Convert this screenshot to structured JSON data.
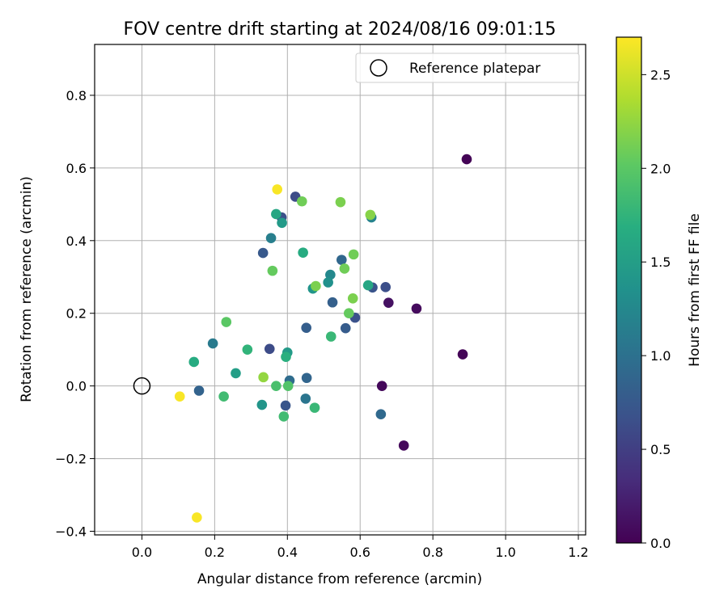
{
  "chart_data": {
    "type": "scatter",
    "title": "FOV centre drift starting at 2024/08/16 09:01:15",
    "xlabel": "Angular distance from reference (arcmin)",
    "ylabel": "Rotation from reference (arcmin)",
    "xlim": [
      -0.13,
      1.22
    ],
    "ylim": [
      -0.41,
      0.94
    ],
    "xticks": [
      0.0,
      0.2,
      0.4,
      0.6,
      0.8,
      1.0,
      1.2
    ],
    "yticks": [
      -0.4,
      -0.2,
      0.0,
      0.2,
      0.4,
      0.6,
      0.8
    ],
    "xtick_labels": [
      "0.0",
      "0.2",
      "0.4",
      "0.6",
      "0.8",
      "1.0",
      "1.2"
    ],
    "ytick_labels": [
      "−0.4",
      "−0.2",
      "0.0",
      "0.2",
      "0.4",
      "0.6",
      "0.8"
    ],
    "grid": true,
    "legend": {
      "position": "top-right",
      "entries": [
        "Reference platepar"
      ]
    },
    "reference_point": {
      "x": 0.0,
      "y": 0.0,
      "label": "Reference platepar"
    },
    "colorbar": {
      "label": "Hours from first FF file",
      "colormap": "viridis",
      "range": [
        0.0,
        2.7
      ],
      "ticks": [
        0.0,
        0.5,
        1.0,
        1.5,
        2.0,
        2.5
      ],
      "tick_labels": [
        "0.0",
        "0.5",
        "1.0",
        "1.5",
        "2.0",
        "2.5"
      ]
    },
    "points": [
      {
        "x": 0.893,
        "y": 0.624,
        "c": 0.02
      },
      {
        "x": 0.882,
        "y": 0.087,
        "c": 0.03
      },
      {
        "x": 0.755,
        "y": 0.213,
        "c": 0.08
      },
      {
        "x": 0.678,
        "y": 0.229,
        "c": 0.12
      },
      {
        "x": 0.66,
        "y": 0.0,
        "c": 0.05
      },
      {
        "x": 0.72,
        "y": -0.164,
        "c": 0.06
      },
      {
        "x": 0.67,
        "y": 0.272,
        "c": 0.65
      },
      {
        "x": 0.634,
        "y": 0.271,
        "c": 0.7
      },
      {
        "x": 0.586,
        "y": 0.188,
        "c": 0.68
      },
      {
        "x": 0.56,
        "y": 0.159,
        "c": 0.78
      },
      {
        "x": 0.657,
        "y": -0.078,
        "c": 0.92
      },
      {
        "x": 0.422,
        "y": 0.521,
        "c": 0.62
      },
      {
        "x": 0.384,
        "y": 0.464,
        "c": 0.66
      },
      {
        "x": 0.524,
        "y": 0.23,
        "c": 0.82
      },
      {
        "x": 0.452,
        "y": 0.16,
        "c": 0.8
      },
      {
        "x": 0.549,
        "y": 0.347,
        "c": 0.9
      },
      {
        "x": 0.333,
        "y": 0.366,
        "c": 0.75
      },
      {
        "x": 0.351,
        "y": 0.102,
        "c": 0.62
      },
      {
        "x": 0.395,
        "y": -0.054,
        "c": 0.72
      },
      {
        "x": 0.406,
        "y": 0.015,
        "c": 0.95
      },
      {
        "x": 0.453,
        "y": 0.022,
        "c": 0.88
      },
      {
        "x": 0.45,
        "y": -0.035,
        "c": 1.05
      },
      {
        "x": 0.157,
        "y": -0.013,
        "c": 0.85
      },
      {
        "x": 0.195,
        "y": 0.117,
        "c": 1.1
      },
      {
        "x": 0.355,
        "y": 0.407,
        "c": 1.15
      },
      {
        "x": 0.631,
        "y": 0.464,
        "c": 1.2
      },
      {
        "x": 0.518,
        "y": 0.306,
        "c": 1.25
      },
      {
        "x": 0.512,
        "y": 0.285,
        "c": 1.35
      },
      {
        "x": 0.47,
        "y": 0.268,
        "c": 1.4
      },
      {
        "x": 0.4,
        "y": 0.092,
        "c": 1.45
      },
      {
        "x": 0.258,
        "y": 0.035,
        "c": 1.5
      },
      {
        "x": 0.33,
        "y": -0.052,
        "c": 1.4
      },
      {
        "x": 0.385,
        "y": 0.449,
        "c": 1.45
      },
      {
        "x": 0.369,
        "y": 0.473,
        "c": 1.6
      },
      {
        "x": 0.443,
        "y": 0.367,
        "c": 1.65
      },
      {
        "x": 0.622,
        "y": 0.277,
        "c": 1.6
      },
      {
        "x": 0.396,
        "y": 0.08,
        "c": 1.7
      },
      {
        "x": 0.143,
        "y": 0.066,
        "c": 1.65
      },
      {
        "x": 0.29,
        "y": 0.1,
        "c": 1.75
      },
      {
        "x": 0.52,
        "y": 0.136,
        "c": 1.8
      },
      {
        "x": 0.39,
        "y": -0.084,
        "c": 1.85
      },
      {
        "x": 0.475,
        "y": -0.06,
        "c": 1.8
      },
      {
        "x": 0.225,
        "y": -0.029,
        "c": 1.85
      },
      {
        "x": 0.369,
        "y": 0.0,
        "c": 1.9
      },
      {
        "x": 0.402,
        "y": 0.0,
        "c": 1.95
      },
      {
        "x": 0.232,
        "y": 0.176,
        "c": 2.0
      },
      {
        "x": 0.359,
        "y": 0.317,
        "c": 2.05
      },
      {
        "x": 0.557,
        "y": 0.323,
        "c": 2.1
      },
      {
        "x": 0.569,
        "y": 0.2,
        "c": 2.05
      },
      {
        "x": 0.478,
        "y": 0.275,
        "c": 2.15
      },
      {
        "x": 0.44,
        "y": 0.508,
        "c": 2.1
      },
      {
        "x": 0.546,
        "y": 0.506,
        "c": 2.15
      },
      {
        "x": 0.628,
        "y": 0.471,
        "c": 2.2
      },
      {
        "x": 0.582,
        "y": 0.362,
        "c": 2.1
      },
      {
        "x": 0.58,
        "y": 0.241,
        "c": 2.15
      },
      {
        "x": 0.334,
        "y": 0.024,
        "c": 2.25
      },
      {
        "x": 0.372,
        "y": 0.541,
        "c": 2.68
      },
      {
        "x": 0.104,
        "y": -0.029,
        "c": 2.68
      },
      {
        "x": 0.151,
        "y": -0.362,
        "c": 2.68
      }
    ]
  }
}
